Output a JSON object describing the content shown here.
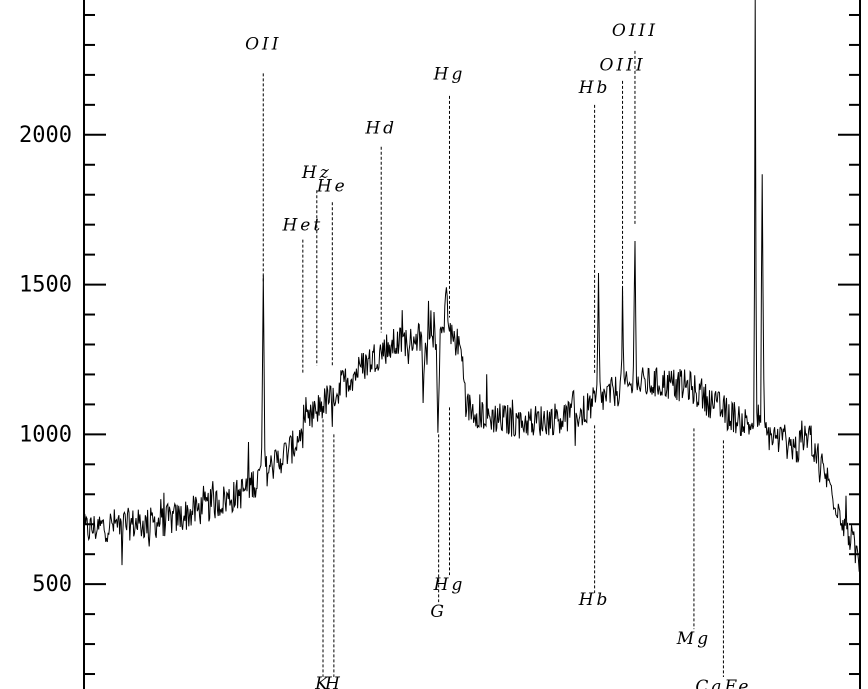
{
  "chart_data": {
    "type": "line",
    "title": "",
    "xlabel": "",
    "ylabel": "",
    "ylim": [
      150,
      2450
    ],
    "xlim": [
      0,
      1000
    ],
    "y_ticks": [
      {
        "value": 500,
        "label": "500"
      },
      {
        "value": 1000,
        "label": "1000"
      },
      {
        "value": 1500,
        "label": "1500"
      },
      {
        "value": 2000,
        "label": "2000"
      }
    ],
    "y_minor_step": 100,
    "continuum": [
      [
        0,
        680
      ],
      [
        40,
        700
      ],
      [
        80,
        700
      ],
      [
        120,
        720
      ],
      [
        160,
        760
      ],
      [
        200,
        800
      ],
      [
        240,
        890
      ],
      [
        270,
        960
      ],
      [
        300,
        1080
      ],
      [
        330,
        1160
      ],
      [
        360,
        1230
      ],
      [
        390,
        1290
      ],
      [
        420,
        1320
      ],
      [
        450,
        1340
      ],
      [
        470,
        1340
      ],
      [
        485,
        1290
      ],
      [
        495,
        1090
      ],
      [
        520,
        1060
      ],
      [
        560,
        1040
      ],
      [
        600,
        1050
      ],
      [
        640,
        1070
      ],
      [
        660,
        1110
      ],
      [
        690,
        1150
      ],
      [
        720,
        1170
      ],
      [
        750,
        1170
      ],
      [
        780,
        1160
      ],
      [
        800,
        1120
      ],
      [
        830,
        1070
      ],
      [
        860,
        1030
      ],
      [
        880,
        1000
      ],
      [
        900,
        980
      ],
      [
        920,
        950
      ],
      [
        935,
        1000
      ],
      [
        950,
        900
      ],
      [
        970,
        770
      ],
      [
        990,
        640
      ],
      [
        1000,
        560
      ]
    ],
    "noise_amplitude": 55,
    "peaks": [
      {
        "x": 231,
        "height": 1480,
        "width": 1.4
      },
      {
        "x": 419,
        "height": 1250,
        "width": 1.6
      },
      {
        "x": 467,
        "height": 1540,
        "width": 1.6
      },
      {
        "x": 663,
        "height": 1500,
        "width": 1.2
      },
      {
        "x": 694,
        "height": 1440,
        "width": 1.2
      },
      {
        "x": 710,
        "height": 1700,
        "width": 1.2
      },
      {
        "x": 865,
        "height": 2450,
        "width": 1.0
      },
      {
        "x": 874,
        "height": 1860,
        "width": 1.3
      }
    ],
    "dips": [
      {
        "x": 305,
        "depth": 1100,
        "width": 1.4
      },
      {
        "x": 320,
        "depth": 1020,
        "width": 1.4
      },
      {
        "x": 437,
        "depth": 1060,
        "width": 1.4
      },
      {
        "x": 456,
        "depth": 1010,
        "width": 1.4
      }
    ],
    "emission_lines": [
      {
        "label": "OII",
        "x": 231,
        "label_y": 2285,
        "line_top": 2205,
        "line_bottom": 1510
      },
      {
        "label": "Het",
        "x": 282,
        "label_y": 1680,
        "line_top": 1650,
        "line_bottom": 1200
      },
      {
        "label": "Hz",
        "x": 300,
        "label_y": 1855,
        "line_top": 1815,
        "line_bottom": 1230
      },
      {
        "label": "He",
        "x": 320,
        "label_y": 1810,
        "line_top": 1775,
        "line_bottom": 1230
      },
      {
        "label": "Hd",
        "x": 383,
        "label_y": 2005,
        "line_top": 1960,
        "line_bottom": 1340
      },
      {
        "label": "Hg",
        "x": 471,
        "label_y": 2185,
        "line_top": 2130,
        "line_bottom": 1390
      },
      {
        "label": "Hb",
        "x": 658,
        "label_y": 2140,
        "line_top": 2100,
        "line_bottom": 1200
      },
      {
        "label": "OIII",
        "x": 694,
        "label_y": 2215,
        "line_top": 2180,
        "line_bottom": 1440
      },
      {
        "label": "OIII",
        "x": 710,
        "label_y": 2330,
        "line_top": 2280,
        "line_bottom": 1700
      }
    ],
    "absorption_lines": [
      {
        "label": "K",
        "x": 308,
        "label_y": 150,
        "line_top": 1050,
        "line_bottom": 190
      },
      {
        "label": "H",
        "x": 322,
        "label_y": 150,
        "line_top": 1000,
        "line_bottom": 190
      },
      {
        "label": "G",
        "x": 457,
        "label_y": 390,
        "line_top": 1000,
        "line_bottom": 440
      },
      {
        "label": "Hg",
        "x": 471,
        "label_y": 480,
        "line_top": 1090,
        "line_bottom": 530
      },
      {
        "label": "Hb",
        "x": 658,
        "label_y": 430,
        "line_top": 1030,
        "line_bottom": 470
      },
      {
        "label": "Mg",
        "x": 786,
        "label_y": 300,
        "line_top": 1020,
        "line_bottom": 350
      },
      {
        "label": "CaFe",
        "x": 824,
        "label_y": 140,
        "line_top": 980,
        "line_bottom": 190
      }
    ]
  }
}
